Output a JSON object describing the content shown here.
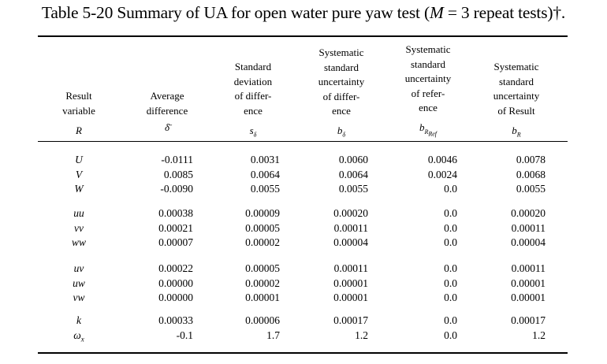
{
  "caption": {
    "prefix": "Table 5-20 Summary of UA for open water pure yaw test (",
    "m_symbol": "M",
    "suffix": " = 3 repeat tests)†."
  },
  "columns": [
    {
      "heading": [
        "Result",
        "variable"
      ],
      "symbol": "R"
    },
    {
      "heading": [
        "Average",
        "difference"
      ],
      "symbol": "δ̄"
    },
    {
      "heading": [
        "Standard",
        "deviation",
        "of differ-",
        "ence"
      ],
      "symbol": "sδ"
    },
    {
      "heading": [
        "Systematic",
        "standard",
        "uncertainty",
        "of differ-",
        "ence"
      ],
      "symbol": "bδ"
    },
    {
      "heading": [
        "Systematic",
        "standard",
        "uncertainty",
        "of refer-",
        "ence"
      ],
      "symbol": "bRRef"
    },
    {
      "heading": [
        "Systematic",
        "standard",
        "uncertainty",
        "of Result"
      ],
      "symbol": "bR"
    }
  ],
  "groups": [
    [
      [
        "U",
        "-0.0111",
        "0.0031",
        "0.0060",
        "0.0046",
        "0.0078"
      ],
      [
        "V",
        "0.0085",
        "0.0064",
        "0.0064",
        "0.0024",
        "0.0068"
      ],
      [
        "W",
        "-0.0090",
        "0.0055",
        "0.0055",
        "0.0",
        "0.0055"
      ]
    ],
    [
      [
        "uu",
        "0.00038",
        "0.00009",
        "0.00020",
        "0.0",
        "0.00020"
      ],
      [
        "vv",
        "0.00021",
        "0.00005",
        "0.00011",
        "0.0",
        "0.00011"
      ],
      [
        "ww",
        "0.00007",
        "0.00002",
        "0.00004",
        "0.0",
        "0.00004"
      ]
    ],
    [
      [
        "uv",
        "0.00022",
        "0.00005",
        "0.00011",
        "0.0",
        "0.00011"
      ],
      [
        "uw",
        "0.00000",
        "0.00002",
        "0.00001",
        "0.0",
        "0.00001"
      ],
      [
        "vw",
        "0.00000",
        "0.00001",
        "0.00001",
        "0.0",
        "0.00001"
      ]
    ],
    [
      [
        "k",
        "0.00033",
        "0.00006",
        "0.00017",
        "0.0",
        "0.00017"
      ],
      [
        "ωx",
        "-0.1",
        "1.7",
        "1.2",
        "0.0",
        "1.2"
      ]
    ]
  ]
}
